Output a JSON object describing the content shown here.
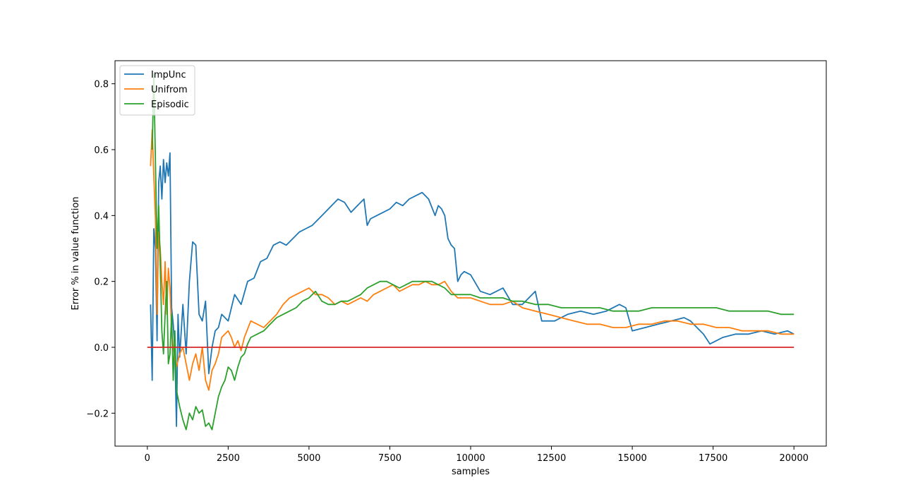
{
  "chart_data": {
    "type": "line",
    "title": "",
    "xlabel": "samples",
    "ylabel": "Error % in value function",
    "xlim": [
      -1000,
      21000
    ],
    "ylim": [
      -0.3,
      0.87
    ],
    "x_ticks": [
      0,
      2500,
      5000,
      7500,
      10000,
      12500,
      15000,
      17500,
      20000
    ],
    "x_tick_labels": [
      "0",
      "2500",
      "5000",
      "7500",
      "10000",
      "12500",
      "15000",
      "17500",
      "20000"
    ],
    "y_ticks": [
      -0.2,
      0.0,
      0.2,
      0.4,
      0.6,
      0.8
    ],
    "y_tick_labels": [
      "−0.2",
      "0.0",
      "0.2",
      "0.4",
      "0.6",
      "0.8"
    ],
    "grid": false,
    "legend_position": "top-left",
    "series": [
      {
        "name": "ImpUnc",
        "color": "#1f77b4",
        "x": [
          100,
          150,
          200,
          250,
          300,
          350,
          400,
          450,
          500,
          550,
          600,
          650,
          700,
          750,
          800,
          850,
          900,
          950,
          1000,
          1100,
          1200,
          1300,
          1400,
          1500,
          1600,
          1700,
          1800,
          1900,
          2000,
          2100,
          2200,
          2300,
          2400,
          2500,
          2700,
          2900,
          3100,
          3300,
          3500,
          3700,
          3900,
          4100,
          4300,
          4500,
          4700,
          4900,
          5100,
          5300,
          5500,
          5700,
          5900,
          6100,
          6300,
          6500,
          6700,
          6800,
          6900,
          7100,
          7300,
          7500,
          7700,
          7900,
          8100,
          8300,
          8500,
          8700,
          8900,
          9000,
          9100,
          9200,
          9300,
          9400,
          9500,
          9600,
          9700,
          9800,
          10000,
          10300,
          10600,
          11000,
          11300,
          11600,
          12000,
          12200,
          12600,
          13000,
          13400,
          13800,
          14200,
          14600,
          14800,
          15000,
          15400,
          15800,
          16200,
          16600,
          16800,
          17000,
          17200,
          17400,
          17800,
          18200,
          18600,
          19000,
          19400,
          19800,
          20000
        ],
        "values": [
          0.13,
          -0.1,
          0.36,
          0.3,
          0.02,
          0.5,
          0.55,
          0.45,
          0.57,
          0.5,
          0.56,
          0.52,
          0.59,
          0.12,
          0.07,
          -0.01,
          -0.24,
          0.1,
          -0.03,
          0.13,
          -0.02,
          0.2,
          0.32,
          0.31,
          0.1,
          0.08,
          0.14,
          -0.08,
          0.0,
          0.05,
          0.06,
          0.1,
          0.09,
          0.08,
          0.16,
          0.13,
          0.2,
          0.21,
          0.26,
          0.27,
          0.31,
          0.32,
          0.31,
          0.33,
          0.35,
          0.36,
          0.37,
          0.39,
          0.41,
          0.43,
          0.45,
          0.44,
          0.41,
          0.43,
          0.45,
          0.37,
          0.39,
          0.4,
          0.41,
          0.42,
          0.44,
          0.43,
          0.45,
          0.46,
          0.47,
          0.45,
          0.4,
          0.43,
          0.42,
          0.4,
          0.33,
          0.31,
          0.3,
          0.2,
          0.22,
          0.23,
          0.22,
          0.17,
          0.16,
          0.18,
          0.13,
          0.13,
          0.17,
          0.08,
          0.08,
          0.1,
          0.11,
          0.1,
          0.11,
          0.13,
          0.12,
          0.05,
          0.06,
          0.07,
          0.08,
          0.09,
          0.08,
          0.06,
          0.04,
          0.01,
          0.03,
          0.04,
          0.04,
          0.05,
          0.04,
          0.05,
          0.04
        ]
      },
      {
        "name": "Unifrom",
        "color": "#ff7f0e",
        "x": [
          100,
          150,
          200,
          250,
          300,
          350,
          400,
          450,
          500,
          550,
          600,
          650,
          700,
          750,
          800,
          900,
          1000,
          1100,
          1200,
          1300,
          1400,
          1500,
          1600,
          1700,
          1800,
          1900,
          2000,
          2100,
          2200,
          2300,
          2400,
          2500,
          2600,
          2700,
          2800,
          2900,
          3000,
          3200,
          3400,
          3600,
          3800,
          4000,
          4200,
          4400,
          4600,
          4800,
          5000,
          5200,
          5400,
          5600,
          5800,
          6000,
          6200,
          6400,
          6600,
          6800,
          7000,
          7200,
          7400,
          7600,
          7800,
          8000,
          8200,
          8400,
          8600,
          8800,
          9000,
          9200,
          9400,
          9600,
          9800,
          10000,
          10300,
          10600,
          11000,
          11300,
          11600,
          12000,
          12400,
          12800,
          13200,
          13600,
          14000,
          14400,
          14800,
          15200,
          15600,
          16000,
          16400,
          16800,
          17200,
          17600,
          18000,
          18400,
          18800,
          19200,
          19600,
          20000
        ],
        "values": [
          0.55,
          0.66,
          0.52,
          0.39,
          0.1,
          0.35,
          0.3,
          0.2,
          0.13,
          0.26,
          0.1,
          0.24,
          0.18,
          0.05,
          0.0,
          -0.06,
          -0.02,
          0.0,
          -0.05,
          -0.1,
          -0.05,
          -0.02,
          -0.07,
          0.0,
          -0.1,
          -0.13,
          -0.07,
          -0.05,
          -0.02,
          0.03,
          0.04,
          0.05,
          0.03,
          0.0,
          0.02,
          -0.01,
          0.03,
          0.08,
          0.07,
          0.06,
          0.08,
          0.1,
          0.13,
          0.15,
          0.16,
          0.17,
          0.18,
          0.16,
          0.16,
          0.15,
          0.13,
          0.14,
          0.13,
          0.14,
          0.15,
          0.14,
          0.16,
          0.17,
          0.18,
          0.19,
          0.17,
          0.18,
          0.19,
          0.19,
          0.2,
          0.19,
          0.19,
          0.2,
          0.17,
          0.15,
          0.15,
          0.15,
          0.14,
          0.13,
          0.13,
          0.14,
          0.12,
          0.11,
          0.1,
          0.09,
          0.08,
          0.07,
          0.07,
          0.06,
          0.06,
          0.07,
          0.07,
          0.08,
          0.08,
          0.07,
          0.07,
          0.06,
          0.06,
          0.05,
          0.05,
          0.05,
          0.04,
          0.04
        ]
      },
      {
        "name": "Episodic",
        "color": "#2ca02c",
        "x": [
          150,
          200,
          250,
          300,
          350,
          400,
          450,
          500,
          550,
          600,
          650,
          700,
          750,
          800,
          850,
          900,
          1000,
          1100,
          1200,
          1300,
          1400,
          1500,
          1600,
          1700,
          1800,
          1900,
          2000,
          2100,
          2200,
          2300,
          2400,
          2500,
          2600,
          2700,
          2800,
          2900,
          3000,
          3100,
          3200,
          3400,
          3600,
          3800,
          4000,
          4200,
          4400,
          4600,
          4800,
          5000,
          5200,
          5400,
          5600,
          5800,
          6000,
          6200,
          6400,
          6600,
          6800,
          7000,
          7200,
          7400,
          7600,
          7800,
          8000,
          8200,
          8400,
          8600,
          8800,
          9000,
          9200,
          9400,
          9600,
          9800,
          10000,
          10300,
          10600,
          11000,
          11300,
          11600,
          12000,
          12400,
          12800,
          13200,
          13600,
          14000,
          14400,
          14800,
          15200,
          15600,
          16000,
          16400,
          16800,
          17200,
          17600,
          18000,
          18400,
          18800,
          19200,
          19600,
          20000
        ],
        "values": [
          0.6,
          0.83,
          0.56,
          0.3,
          0.43,
          0.25,
          0.05,
          -0.02,
          0.1,
          0.2,
          -0.05,
          -0.02,
          0.1,
          -0.1,
          0.05,
          -0.13,
          -0.18,
          -0.22,
          -0.25,
          -0.2,
          -0.22,
          -0.18,
          -0.2,
          -0.19,
          -0.24,
          -0.23,
          -0.25,
          -0.2,
          -0.15,
          -0.12,
          -0.1,
          -0.06,
          -0.07,
          -0.1,
          -0.06,
          -0.03,
          -0.02,
          0.01,
          0.03,
          0.04,
          0.05,
          0.07,
          0.09,
          0.1,
          0.11,
          0.12,
          0.14,
          0.15,
          0.17,
          0.14,
          0.13,
          0.13,
          0.14,
          0.14,
          0.15,
          0.16,
          0.18,
          0.19,
          0.2,
          0.2,
          0.19,
          0.18,
          0.19,
          0.2,
          0.2,
          0.2,
          0.2,
          0.19,
          0.18,
          0.16,
          0.16,
          0.16,
          0.16,
          0.15,
          0.15,
          0.15,
          0.14,
          0.14,
          0.13,
          0.13,
          0.12,
          0.12,
          0.12,
          0.12,
          0.11,
          0.11,
          0.11,
          0.12,
          0.12,
          0.12,
          0.12,
          0.12,
          0.12,
          0.11,
          0.11,
          0.11,
          0.11,
          0.1,
          0.1
        ]
      }
    ],
    "reference_line": {
      "color": "#d62728",
      "y": 0.0,
      "x_start": 0,
      "x_end": 20000
    }
  }
}
